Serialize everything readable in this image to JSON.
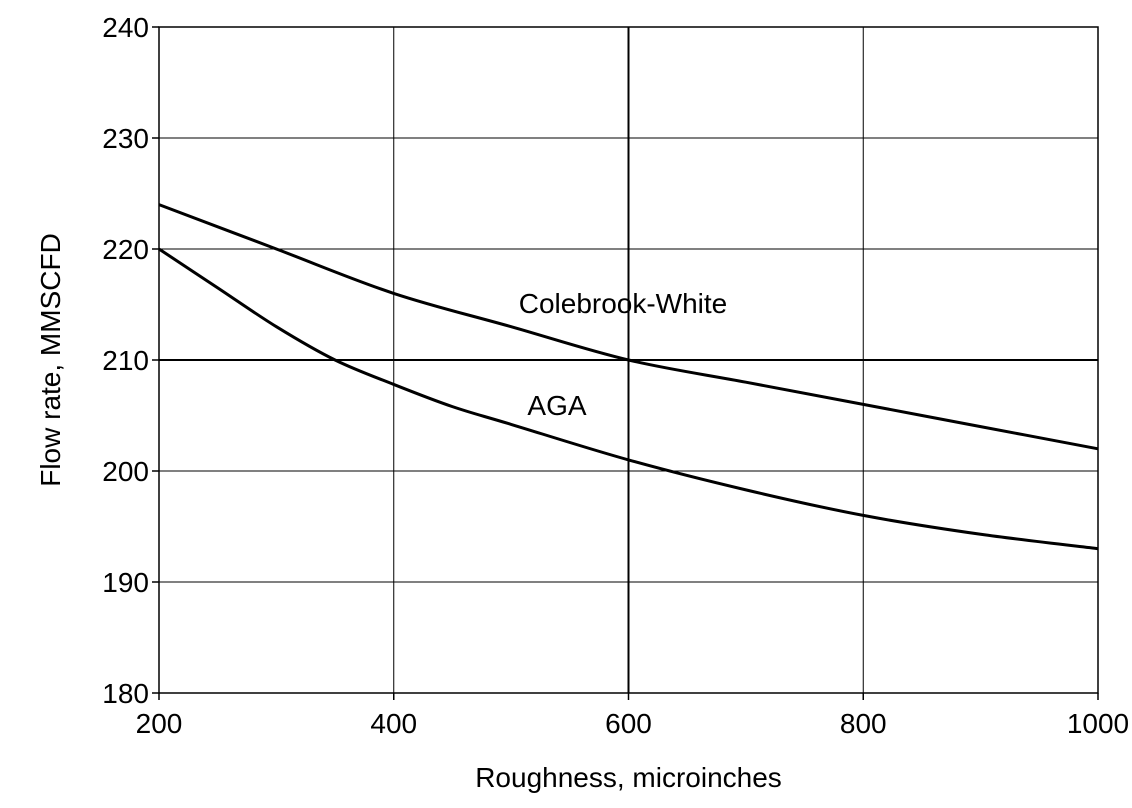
{
  "chart_data": {
    "type": "line",
    "xlabel": "Roughness, microinches",
    "ylabel": "Flow rate, MMSCFD",
    "xlim": [
      200,
      1000
    ],
    "ylim": [
      180,
      240
    ],
    "x_ticks": [
      200,
      400,
      600,
      800,
      1000
    ],
    "y_ticks": [
      180,
      190,
      200,
      210,
      220,
      230,
      240
    ],
    "grid": true,
    "series": [
      {
        "name": "Colebrook-White",
        "x": [
          200,
          300,
          400,
          500,
          600,
          700,
          800,
          900,
          1000
        ],
        "y": [
          224,
          220,
          216,
          213,
          210,
          208,
          206,
          204,
          202
        ]
      },
      {
        "name": "AGA",
        "x": [
          200,
          250,
          300,
          350,
          400,
          450,
          500,
          600,
          700,
          800,
          900,
          1000
        ],
        "y": [
          220,
          216.5,
          213,
          210,
          207.8,
          205.8,
          204.2,
          201,
          198.3,
          196,
          194.3,
          193
        ]
      }
    ]
  }
}
